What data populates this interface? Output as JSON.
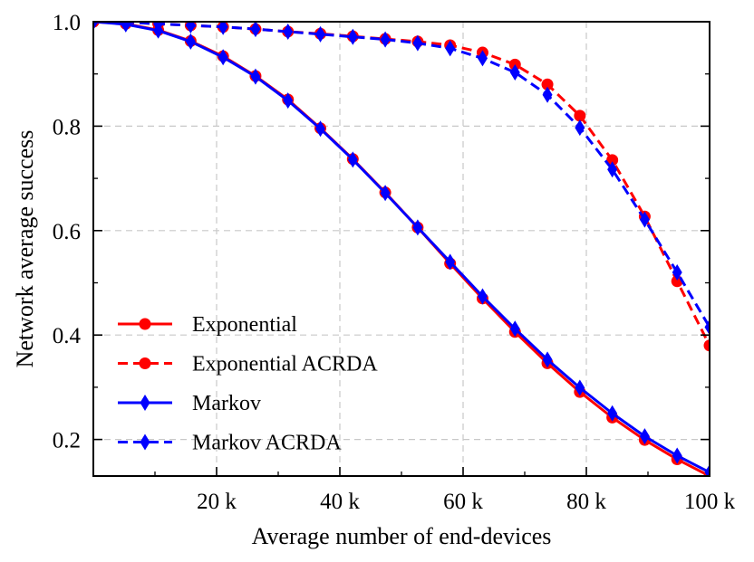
{
  "chart_data": {
    "type": "line",
    "title": "",
    "xlabel": "Average number of end-devices",
    "ylabel": "Network average success",
    "xlim": [
      0,
      100000
    ],
    "ylim": [
      0.13,
      1.0
    ],
    "x_ticks": [
      20000,
      40000,
      60000,
      80000,
      100000
    ],
    "x_tick_labels": [
      "20 k",
      "40 k",
      "60 k",
      "80 k",
      "100 k"
    ],
    "y_ticks": [
      0.2,
      0.4,
      0.6,
      0.8,
      1.0
    ],
    "y_tick_labels": [
      "0.2",
      "0.4",
      "0.6",
      "0.8",
      "1.0"
    ],
    "grid": true,
    "legend_position": "bottom-left",
    "x": [
      0,
      5263,
      10526,
      15789,
      21053,
      26316,
      31579,
      36842,
      42105,
      47368,
      52632,
      57895,
      63158,
      68421,
      73684,
      78947,
      84211,
      89474,
      94737,
      100000
    ],
    "series": [
      {
        "name": "Exponential",
        "color": "#ff0000",
        "line_style": "solid",
        "marker": "circle",
        "values": [
          1.0,
          0.996,
          0.984,
          0.963,
          0.934,
          0.896,
          0.851,
          0.796,
          0.737,
          0.673,
          0.606,
          0.537,
          0.47,
          0.406,
          0.346,
          0.291,
          0.242,
          0.199,
          0.162,
          0.13
        ]
      },
      {
        "name": "Exponential ACRDA",
        "color": "#ff0000",
        "line_style": "dashed",
        "marker": "circle",
        "values": [
          1.0,
          0.999,
          0.996,
          0.993,
          0.99,
          0.986,
          0.981,
          0.977,
          0.972,
          0.967,
          0.962,
          0.955,
          0.941,
          0.918,
          0.88,
          0.82,
          0.735,
          0.627,
          0.503,
          0.38
        ]
      },
      {
        "name": "Markov",
        "color": "#0000ff",
        "line_style": "solid",
        "marker": "diamond",
        "values": [
          1.0,
          0.995,
          0.983,
          0.962,
          0.932,
          0.895,
          0.849,
          0.795,
          0.736,
          0.672,
          0.606,
          0.54,
          0.474,
          0.412,
          0.353,
          0.299,
          0.25,
          0.206,
          0.169,
          0.137
        ]
      },
      {
        "name": "Markov ACRDA",
        "color": "#0000ff",
        "line_style": "dashed",
        "marker": "diamond",
        "values": [
          1.0,
          0.999,
          0.996,
          0.993,
          0.99,
          0.986,
          0.981,
          0.976,
          0.971,
          0.966,
          0.959,
          0.949,
          0.93,
          0.903,
          0.86,
          0.797,
          0.717,
          0.621,
          0.52,
          0.415
        ]
      }
    ]
  }
}
